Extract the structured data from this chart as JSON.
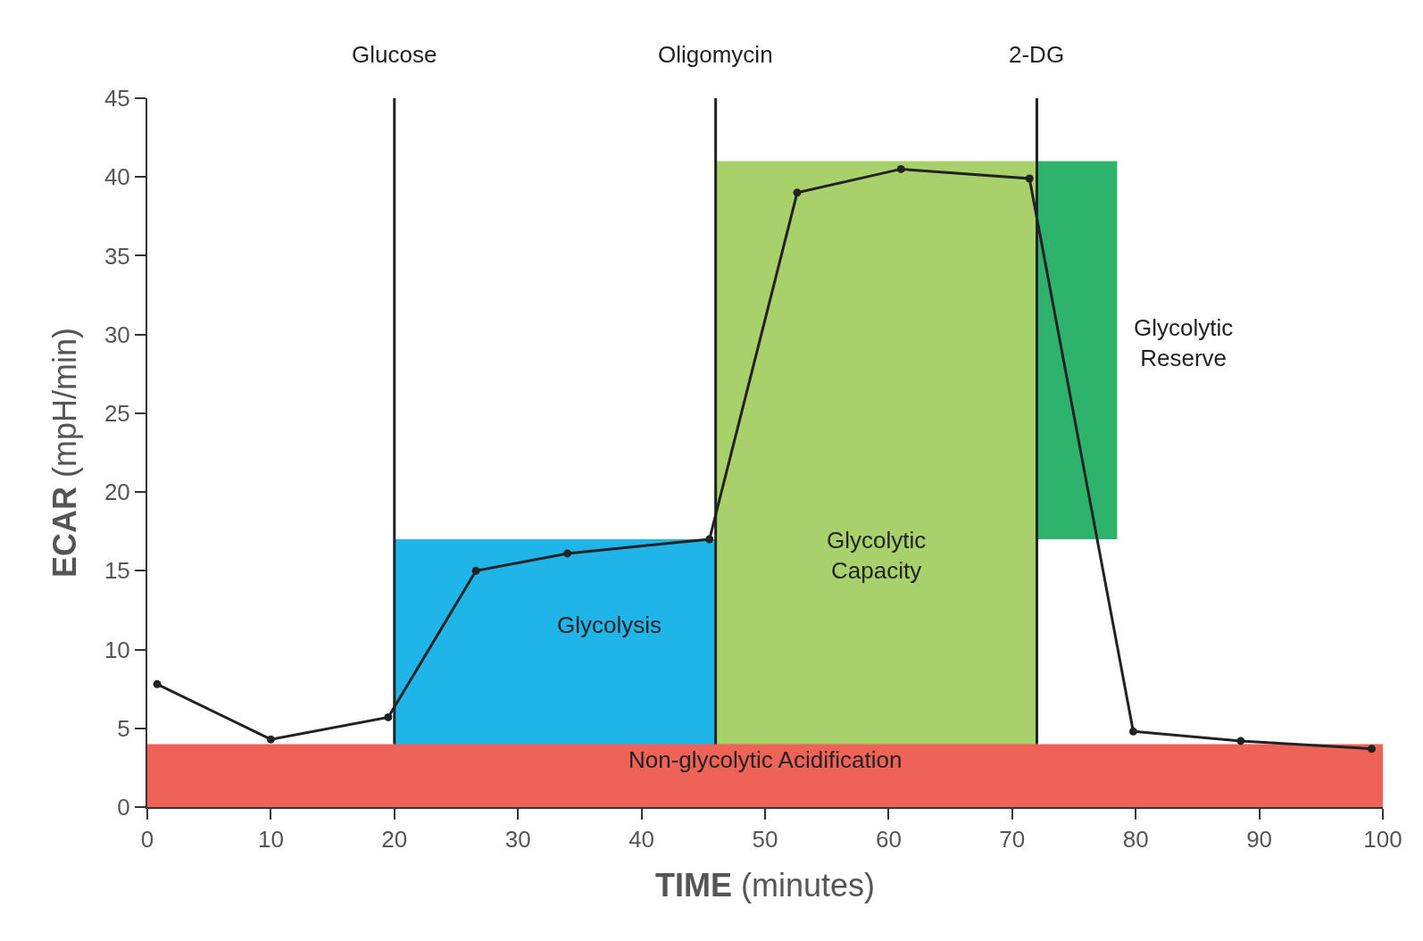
{
  "chart_data": {
    "type": "line",
    "xlabel": "TIME (minutes)",
    "ylabel": "ECAR (mpH/min)",
    "xlim": [
      0,
      100
    ],
    "xticks": [
      0,
      10,
      20,
      30,
      40,
      50,
      60,
      70,
      80,
      90,
      100
    ],
    "ylim": [
      0,
      45
    ],
    "yticks": [
      0,
      5,
      10,
      15,
      20,
      25,
      30,
      35,
      40,
      45
    ],
    "line_style": "solid",
    "series": [
      {
        "type": "area",
        "color": "#a8d16b",
        "x": [
          46,
          72
        ],
        "values": [
          41,
          41
        ]
      },
      {
        "type": "area",
        "color": "#1fb5e8",
        "x": [
          20,
          46
        ],
        "values": [
          17,
          17
        ]
      },
      {
        "type": "area",
        "color": "#ef6257",
        "x": [
          0,
          100
        ],
        "values": [
          4,
          4
        ]
      },
      {
        "type": "bar",
        "color": "#2db36b",
        "x": [
          75.25
        ],
        "values": [
          24
        ],
        "base": [
          17
        ]
      },
      {
        "color": "#222222",
        "marker": "circle",
        "x": [
          0.8,
          10,
          19.5,
          26.6,
          34,
          45.5,
          52.6,
          61,
          71.4,
          79.8,
          88.5,
          99.1
        ],
        "values": [
          7.8,
          4.3,
          5.7,
          15.0,
          16.1,
          17.0,
          39.0,
          40.5,
          39.9,
          4.8,
          4.2,
          3.7
        ]
      }
    ],
    "ref_lines": [
      {
        "axis": "x",
        "value": 20,
        "label": "Glucose",
        "color": "#222222"
      },
      {
        "axis": "x",
        "value": 46,
        "label": "Oligomycin",
        "color": "#222222"
      },
      {
        "axis": "x",
        "value": 72,
        "label": "2-DG",
        "color": "#222222"
      }
    ],
    "annotations": [
      "Non-glycolytic Acidification",
      "Glycolysis",
      "Glycolytic\nCapacity",
      "Glycolytic\nReserve"
    ]
  }
}
